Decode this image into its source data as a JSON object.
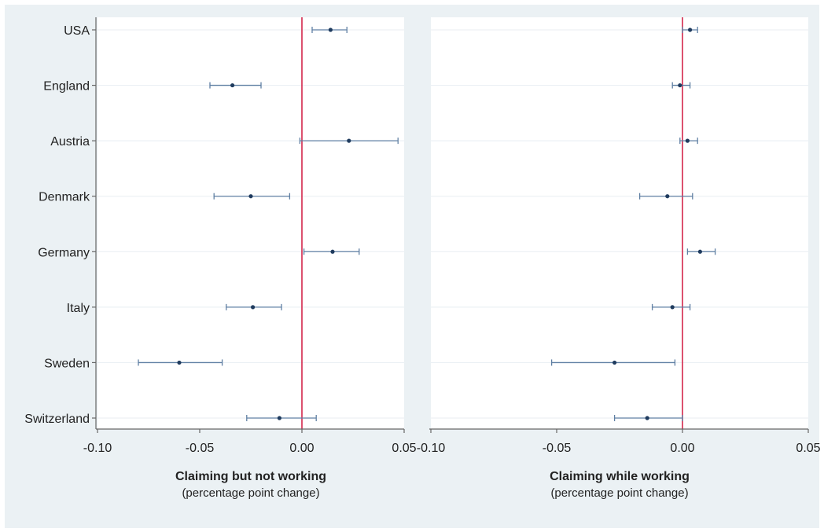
{
  "colors": {
    "background": "#ffffff",
    "panel_background": "#ebf1f4",
    "plot_background": "#ffffff",
    "gridline": "#e8eef2",
    "marker": "#1f3b5e",
    "ci_line": "#5f7fa3",
    "reference_line": "#d3264b",
    "axis": "#666666",
    "text": "#222222"
  },
  "chart_data": [
    {
      "type": "scatter",
      "style": "coefficient plot with horizontal confidence intervals",
      "categories": [
        "USA",
        "England",
        "Austria",
        "Denmark",
        "Germany",
        "Italy",
        "Sweden",
        "Switzerland"
      ],
      "category_labels": [
        "USA",
        "England",
        "Austria",
        "Denmark",
        "Germany",
        "Italy",
        "Sweden",
        "Switzerland"
      ],
      "estimates": [
        0.014,
        -0.034,
        0.023,
        -0.025,
        0.015,
        -0.024,
        -0.06,
        -0.011
      ],
      "ci_low": [
        0.005,
        -0.045,
        -0.001,
        -0.043,
        0.001,
        -0.037,
        -0.08,
        -0.027
      ],
      "ci_high": [
        0.022,
        -0.02,
        0.047,
        -0.006,
        0.028,
        -0.01,
        -0.039,
        0.007
      ],
      "xlim": [
        -0.1,
        0.05
      ],
      "xticks": [
        -0.1,
        -0.05,
        0.0,
        0.05
      ],
      "xtick_labels": [
        "-0.10",
        "-0.05",
        "0.00",
        "0.05"
      ],
      "reference_line": 0,
      "xlabel": "Claiming but not working",
      "xlabel_sub": "(percentage point change)",
      "grid": true
    },
    {
      "type": "scatter",
      "style": "coefficient plot with horizontal confidence intervals",
      "categories": [
        "USA",
        "England",
        "Austria",
        "Denmark",
        "Germany",
        "Italy",
        "Sweden",
        "Switzerland"
      ],
      "estimates": [
        0.003,
        -0.001,
        0.002,
        -0.006,
        0.007,
        -0.004,
        -0.027,
        -0.014
      ],
      "ci_low": [
        0.0,
        -0.004,
        -0.001,
        -0.017,
        0.002,
        -0.012,
        -0.052,
        -0.027
      ],
      "ci_high": [
        0.006,
        0.003,
        0.006,
        0.004,
        0.013,
        0.003,
        -0.003,
        0.0
      ],
      "xlim": [
        -0.1,
        0.05
      ],
      "xticks": [
        -0.1,
        -0.05,
        0.0,
        0.05
      ],
      "xtick_labels": [
        "-0.10",
        "-0.05",
        "0.00",
        "0.05"
      ],
      "reference_line": 0,
      "xlabel": "Claiming while working",
      "xlabel_sub": "(percentage point change)",
      "grid": true
    }
  ]
}
